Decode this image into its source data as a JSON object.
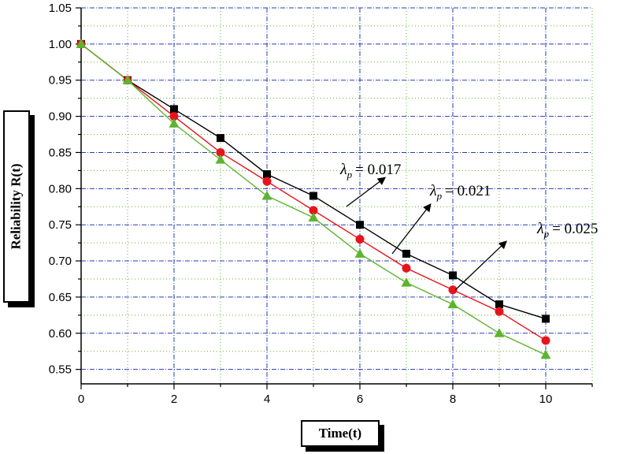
{
  "chart_data": {
    "type": "line",
    "xlabel": "Time(t)",
    "ylabel": "Reliability R(t)",
    "xlim": [
      0,
      11
    ],
    "ylim": [
      0.53,
      1.05
    ],
    "xticks": [
      0,
      2,
      4,
      6,
      8,
      10
    ],
    "yticks": [
      0.55,
      0.6,
      0.65,
      0.7,
      0.75,
      0.8,
      0.85,
      0.9,
      0.95,
      1.0,
      1.05
    ],
    "x": [
      0,
      1,
      2,
      3,
      4,
      5,
      6,
      7,
      8,
      9,
      10
    ],
    "grid": true,
    "series": [
      {
        "name": "λp = 0.017",
        "color": "#000000",
        "marker": "square",
        "values": [
          1.0,
          0.95,
          0.91,
          0.87,
          0.82,
          0.79,
          0.75,
          0.71,
          0.68,
          0.64,
          0.62
        ]
      },
      {
        "name": "λp = 0.021",
        "color": "#e8141b",
        "marker": "circle",
        "values": [
          1.0,
          0.95,
          0.9,
          0.85,
          0.81,
          0.77,
          0.73,
          0.69,
          0.66,
          0.63,
          0.59
        ]
      },
      {
        "name": "λp = 0.025",
        "color": "#5cb52e",
        "marker": "triangle",
        "values": [
          1.0,
          0.95,
          0.89,
          0.84,
          0.79,
          0.76,
          0.71,
          0.67,
          0.64,
          0.6,
          0.57
        ]
      }
    ],
    "annotations": [
      {
        "symbol": "λ",
        "subscript": "p",
        "text": "= 0.017"
      },
      {
        "symbol": "λ",
        "subscript": "p",
        "text": "= 0.021"
      },
      {
        "symbol": "λ",
        "subscript": "p",
        "text": "= 0.025"
      }
    ]
  }
}
